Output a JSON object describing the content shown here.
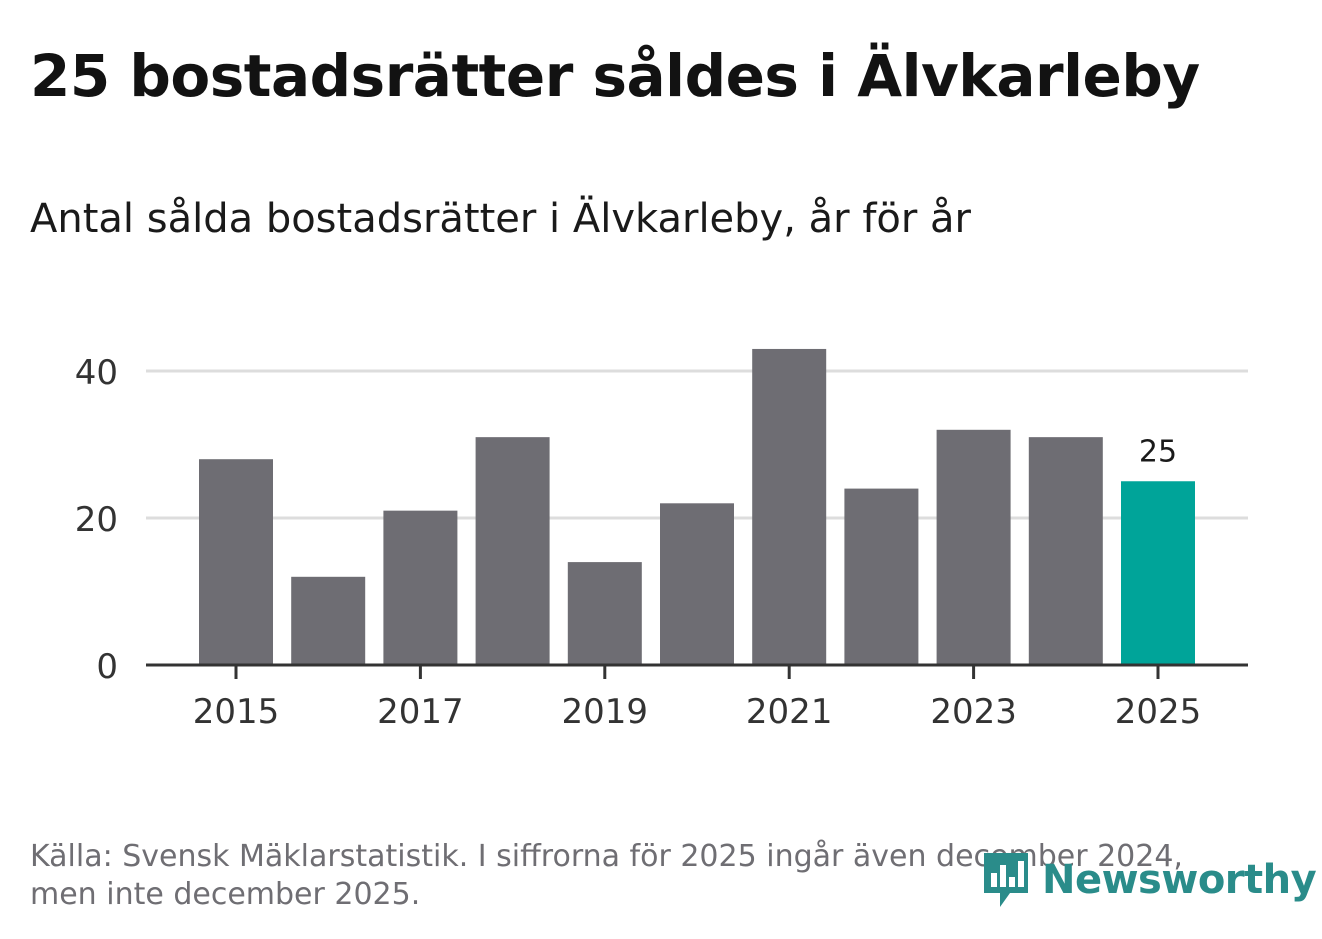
{
  "header": {
    "title": "25 bostadsrätter såldes i Älvkarleby",
    "subtitle": "Antal sålda bostadsrätter i Älvkarleby, år för år"
  },
  "chart_data": {
    "type": "bar",
    "title": "25 bostadsrätter såldes i Älvkarleby",
    "subtitle": "Antal sålda bostadsrätter i Älvkarleby, år för år",
    "categories": [
      "2015",
      "2016",
      "2017",
      "2018",
      "2019",
      "2020",
      "2021",
      "2022",
      "2023",
      "2024",
      "2025"
    ],
    "values": [
      28,
      12,
      21,
      31,
      14,
      22,
      43,
      24,
      32,
      31,
      25
    ],
    "highlight_index": 10,
    "highlight_label": "25",
    "xticks": [
      "2015",
      "2017",
      "2019",
      "2021",
      "2023",
      "2025"
    ],
    "yticks": [
      0,
      20,
      40
    ],
    "ylim": [
      0,
      45
    ],
    "xlabel": "",
    "ylabel": "",
    "grid": true,
    "colors": {
      "bar": "#6e6d73",
      "highlight": "#00a499",
      "grid": "#dddddd",
      "axis": "#333333"
    }
  },
  "footer": {
    "source": "Källa: Svensk Mäklarstatistik. I siffrorna för 2025 ingår även december 2024, men inte december 2025.",
    "logo_text": "Newsworthy",
    "logo_icon": "bar-chart-speech-bubble-icon",
    "logo_color": "#2a8c8a"
  }
}
